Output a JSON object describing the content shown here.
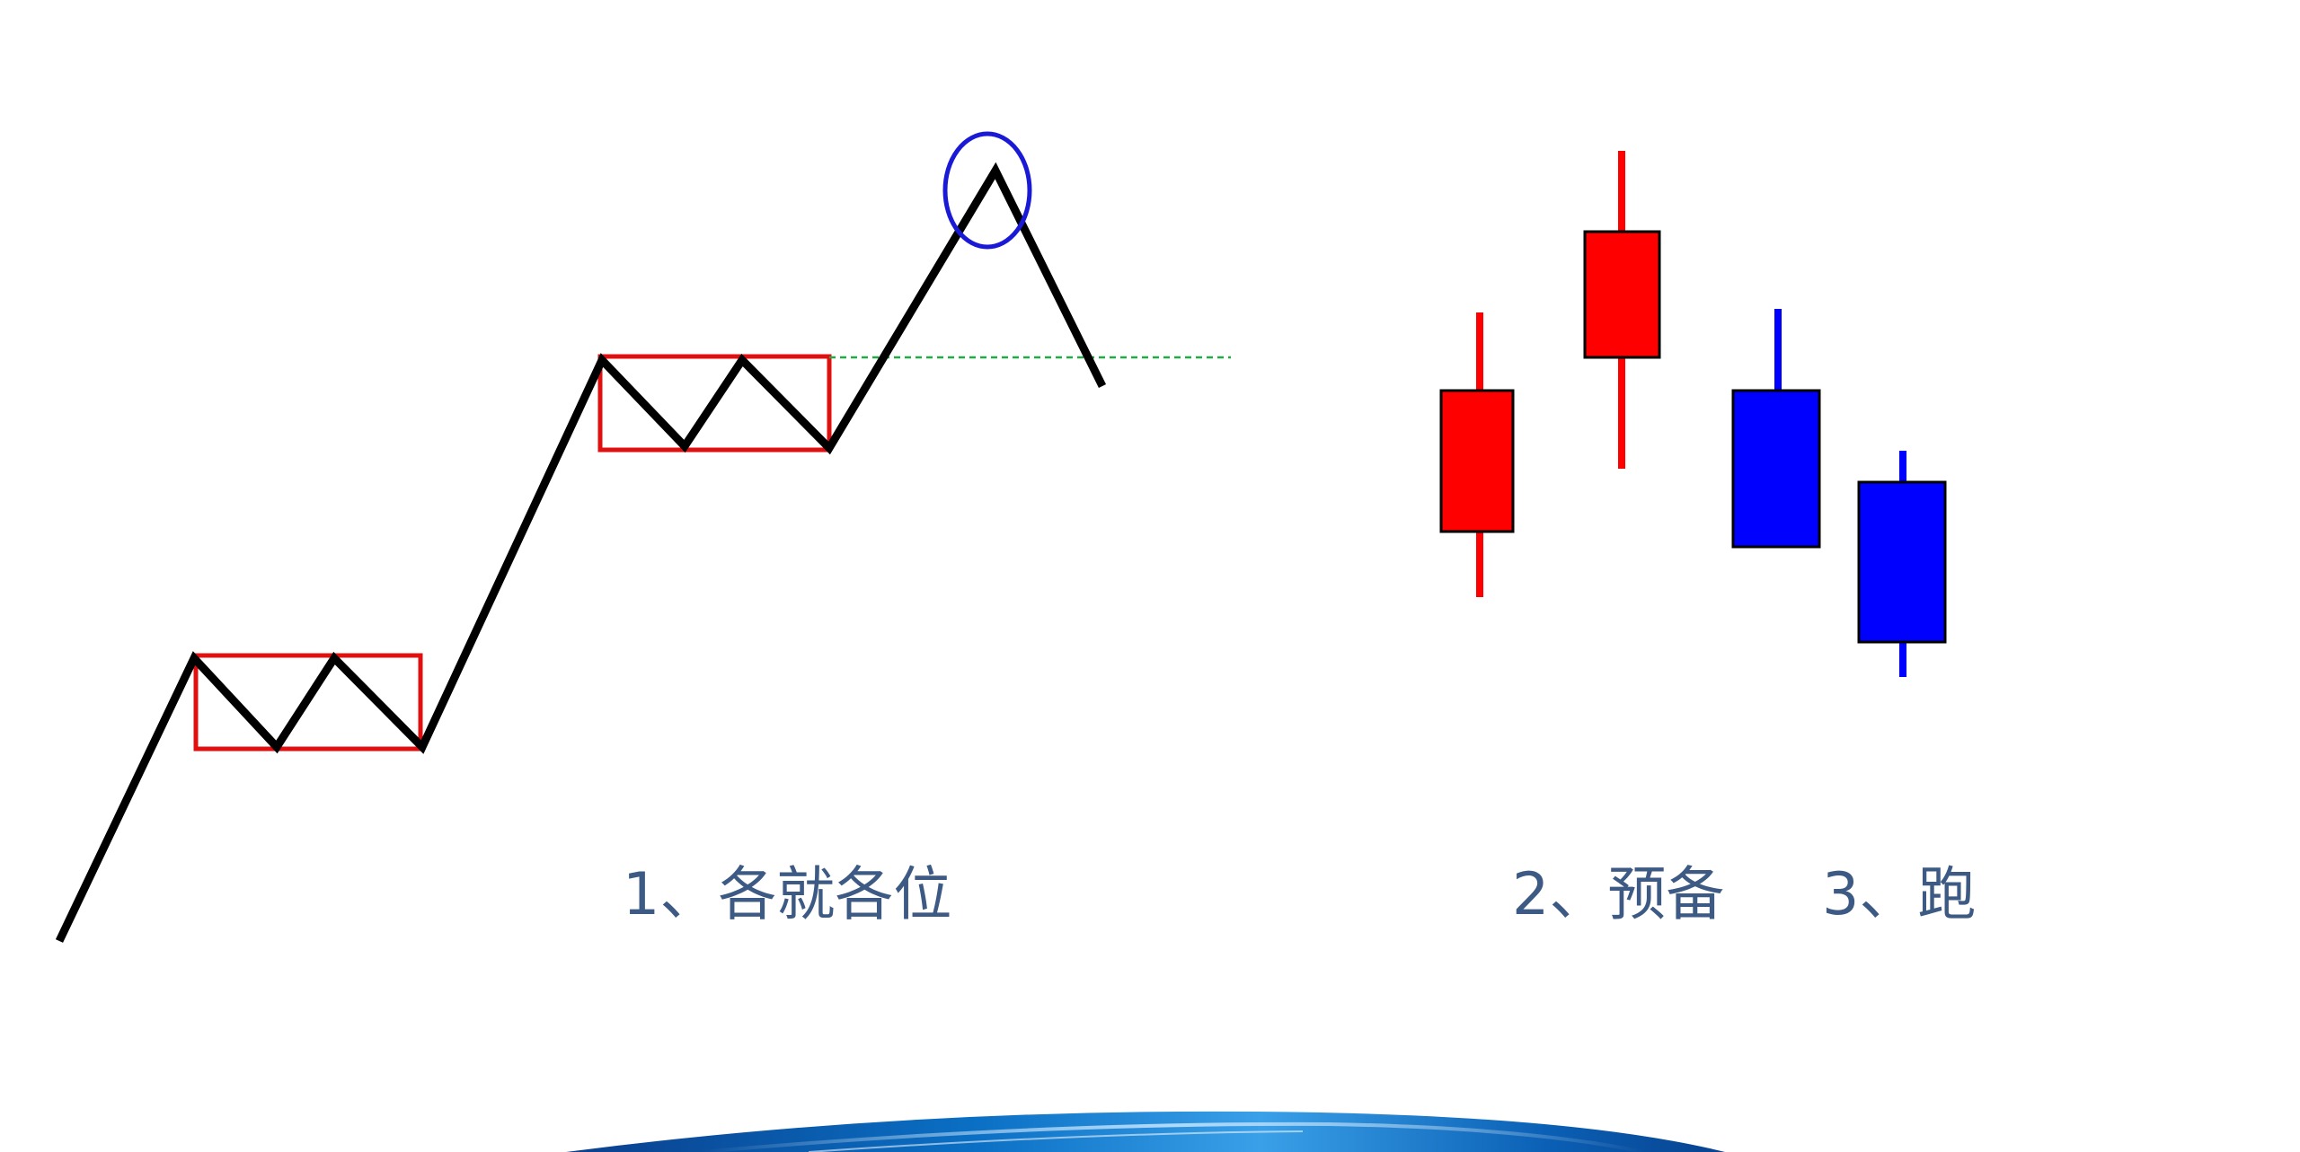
{
  "captions": {
    "step1": "1、各就各位",
    "step2": "2、预备",
    "step3": "3、跑"
  },
  "colors": {
    "price_line": "#000000",
    "consolidation_box": "#e01010",
    "peak_marker": "#1a1ad6",
    "support_line": "#22aa44",
    "bullish_candle": "#ff0000",
    "bearish_candle": "#0000ff",
    "caption_text": "#3d5a84",
    "footer_wave": "#0a6fc4"
  }
}
